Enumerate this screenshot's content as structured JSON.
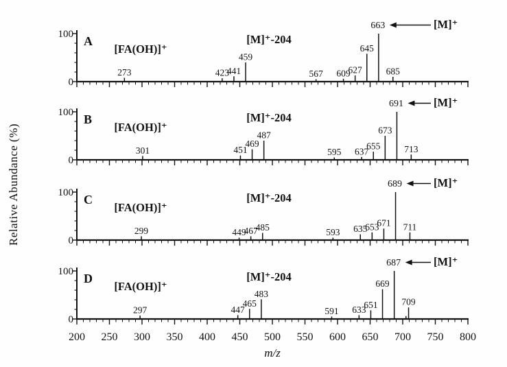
{
  "figure": {
    "ylabel": "Relative Abundance (%)",
    "xlabel": "m/z",
    "axis_color": "#111111",
    "background_color": "#fefefe"
  },
  "chart_data": {
    "type": "line",
    "subtype": "mass-spectrum",
    "title": "",
    "xlabel": "m/z",
    "ylabel": "Relative Abundance (%)",
    "xlim": [
      200,
      800
    ],
    "ylim": [
      0,
      100
    ],
    "grid": false,
    "x_tick_labels": [
      "200",
      "250",
      "300",
      "350",
      "400",
      "450",
      "500",
      "550",
      "600",
      "650",
      "700",
      "750",
      "800"
    ],
    "x_major_tick_step": 50,
    "x_minor_tick_step": 10,
    "y_tick_labels": [
      "100",
      "0"
    ],
    "y_minor_tick_step": 20,
    "panels": [
      {
        "label": "A",
        "fragment_annotation": "[FA(OH)]⁺",
        "loss_annotation": "[M]⁺-204",
        "molecular_ion_annotation": "[M]⁺",
        "molecular_ion_mz": 663,
        "peaks": [
          {
            "mz": 273,
            "intensity": 8,
            "label": "273"
          },
          {
            "mz": 423,
            "intensity": 7,
            "label": "423"
          },
          {
            "mz": 441,
            "intensity": 11,
            "label": "441"
          },
          {
            "mz": 459,
            "intensity": 40,
            "label": "459"
          },
          {
            "mz": 567,
            "intensity": 5,
            "label": "567"
          },
          {
            "mz": 609,
            "intensity": 6,
            "label": "609"
          },
          {
            "mz": 627,
            "intensity": 13,
            "label": "627"
          },
          {
            "mz": 645,
            "intensity": 58,
            "label": "645"
          },
          {
            "mz": 663,
            "intensity": 100,
            "label": "663"
          },
          {
            "mz": 685,
            "intensity": 10,
            "label": "685"
          }
        ]
      },
      {
        "label": "B",
        "fragment_annotation": "[FA(OH)]⁺",
        "loss_annotation": "[M]⁺-204",
        "molecular_ion_annotation": "[M]⁺",
        "molecular_ion_mz": 691,
        "peaks": [
          {
            "mz": 301,
            "intensity": 8,
            "label": "301"
          },
          {
            "mz": 451,
            "intensity": 9,
            "label": "451"
          },
          {
            "mz": 469,
            "intensity": 22,
            "label": "469"
          },
          {
            "mz": 487,
            "intensity": 40,
            "label": "487"
          },
          {
            "mz": 595,
            "intensity": 5,
            "label": "595"
          },
          {
            "mz": 637,
            "intensity": 6,
            "label": "637"
          },
          {
            "mz": 655,
            "intensity": 17,
            "label": "655"
          },
          {
            "mz": 673,
            "intensity": 50,
            "label": "673"
          },
          {
            "mz": 691,
            "intensity": 100,
            "label": "691"
          },
          {
            "mz": 713,
            "intensity": 11,
            "label": "713"
          }
        ]
      },
      {
        "label": "C",
        "fragment_annotation": "[FA(OH)]⁺",
        "loss_annotation": "[M]⁺-204",
        "molecular_ion_annotation": "[M]⁺",
        "molecular_ion_mz": 689,
        "peaks": [
          {
            "mz": 299,
            "intensity": 8,
            "label": "299"
          },
          {
            "mz": 449,
            "intensity": 5,
            "label": "449"
          },
          {
            "mz": 467,
            "intensity": 8,
            "label": "467"
          },
          {
            "mz": 485,
            "intensity": 15,
            "label": "485"
          },
          {
            "mz": 593,
            "intensity": 5,
            "label": "593"
          },
          {
            "mz": 635,
            "intensity": 12,
            "label": "635"
          },
          {
            "mz": 653,
            "intensity": 16,
            "label": "653"
          },
          {
            "mz": 671,
            "intensity": 24,
            "label": "671"
          },
          {
            "mz": 689,
            "intensity": 100,
            "label": "689"
          },
          {
            "mz": 711,
            "intensity": 16,
            "label": "711"
          }
        ]
      },
      {
        "label": "D",
        "fragment_annotation": "[FA(OH)]⁺",
        "loss_annotation": "[M]⁺-204",
        "molecular_ion_annotation": "[M]⁺",
        "molecular_ion_mz": 687,
        "peaks": [
          {
            "mz": 297,
            "intensity": 7,
            "label": "297"
          },
          {
            "mz": 447,
            "intensity": 8,
            "label": "447"
          },
          {
            "mz": 465,
            "intensity": 21,
            "label": "465"
          },
          {
            "mz": 483,
            "intensity": 41,
            "label": "483"
          },
          {
            "mz": 591,
            "intensity": 5,
            "label": "591"
          },
          {
            "mz": 633,
            "intensity": 8,
            "label": "633"
          },
          {
            "mz": 651,
            "intensity": 18,
            "label": "651"
          },
          {
            "mz": 669,
            "intensity": 62,
            "label": "669"
          },
          {
            "mz": 687,
            "intensity": 100,
            "label": "687"
          },
          {
            "mz": 705,
            "intensity": 6,
            "label": ""
          },
          {
            "mz": 709,
            "intensity": 24,
            "label": "709"
          }
        ]
      }
    ]
  }
}
